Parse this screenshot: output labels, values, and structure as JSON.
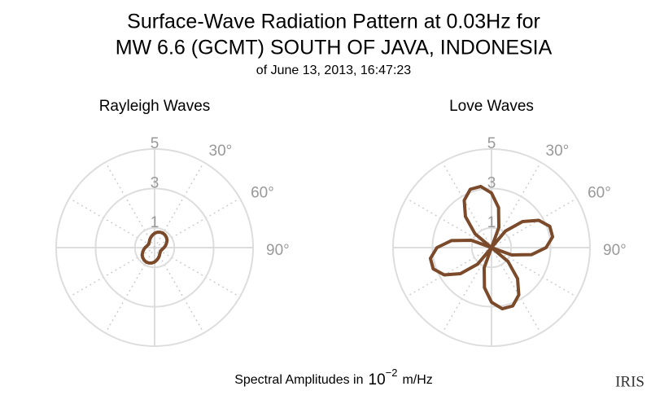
{
  "title": "Surface-Wave Radiation Pattern at 0.03Hz for",
  "title_line2": "MW 6.6 (GCMT) SOUTH OF JAVA, INDONESIA",
  "subtitle": "of June 13, 2013, 16:47:23",
  "footer": {
    "text": "Spectral Amplitudes in",
    "base": "10",
    "exponent": "−2",
    "unit": "m/Hz"
  },
  "logo": "IRIS",
  "chart_data": [
    {
      "type": "polar",
      "title": "Rayleigh Waves",
      "color": "#7a4a2b",
      "theta": [
        0,
        10,
        20,
        30,
        40,
        50,
        60,
        70,
        80,
        90,
        100,
        110,
        120,
        130,
        140,
        150,
        160,
        170,
        180,
        190,
        200,
        210,
        220,
        230,
        240,
        250,
        260,
        270,
        280,
        290,
        300,
        310,
        320,
        330,
        340,
        350
      ],
      "values": [
        0.73,
        0.79,
        0.83,
        0.85,
        0.83,
        0.79,
        0.73,
        0.64,
        0.56,
        0.48,
        0.41,
        0.37,
        0.35,
        0.37,
        0.41,
        0.48,
        0.56,
        0.64,
        0.73,
        0.79,
        0.83,
        0.85,
        0.83,
        0.79,
        0.73,
        0.64,
        0.56,
        0.48,
        0.41,
        0.37,
        0.35,
        0.37,
        0.41,
        0.48,
        0.56,
        0.64
      ],
      "rlim": [
        0,
        5
      ],
      "rticks": [
        1,
        3,
        5
      ],
      "thetaticks": [
        {
          "value": 30,
          "label": "30°"
        },
        {
          "value": 60,
          "label": "60°"
        },
        {
          "value": 90,
          "label": "90°"
        }
      ]
    },
    {
      "type": "polar",
      "title": "Love Waves",
      "color": "#7a4a2b",
      "theta": [
        0,
        10,
        20,
        30,
        40,
        50,
        60,
        70,
        80,
        90,
        100,
        110,
        120,
        130,
        140,
        150,
        160,
        170,
        180,
        190,
        200,
        210,
        220,
        230,
        240,
        250,
        260,
        270,
        280,
        290,
        300,
        310,
        320,
        330,
        340,
        350
      ],
      "values": [
        2.77,
        2.06,
        1.09,
        0,
        1.09,
        2.06,
        2.77,
        3.15,
        3.15,
        2.77,
        2.06,
        1.09,
        0,
        1.09,
        2.06,
        2.77,
        3.15,
        3.15,
        2.77,
        2.06,
        1.09,
        0,
        1.09,
        2.06,
        2.77,
        3.15,
        3.15,
        2.77,
        2.06,
        1.09,
        0,
        1.09,
        2.06,
        2.77,
        3.15,
        3.15
      ],
      "rlim": [
        0,
        5
      ],
      "rticks": [
        1,
        3,
        5
      ],
      "thetaticks": [
        {
          "value": 30,
          "label": "30°"
        },
        {
          "value": 60,
          "label": "60°"
        },
        {
          "value": 90,
          "label": "90°"
        }
      ]
    }
  ]
}
